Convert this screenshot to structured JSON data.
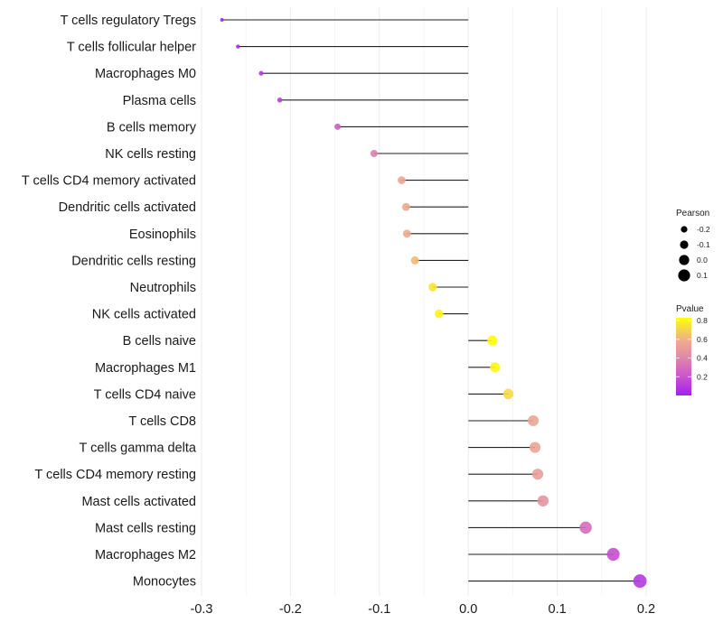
{
  "chart_data": {
    "type": "lollipop",
    "title": "",
    "xlabel": "",
    "ylabel": "",
    "xlim": [
      -0.3,
      0.2
    ],
    "x_ticks": [
      "-0.3",
      "-0.2",
      "-0.1",
      "0.0",
      "0.1",
      "0.2"
    ],
    "x_tick_values": [
      -0.3,
      -0.2,
      -0.1,
      0.0,
      0.1,
      0.2
    ],
    "grid": "vertical",
    "categories": [
      "T cells regulatory  Tregs",
      "T cells follicular helper",
      "Macrophages M0",
      "Plasma cells",
      "B cells memory",
      "NK cells resting",
      "T cells CD4 memory activated",
      "Dendritic cells activated",
      "Eosinophils",
      "Dendritic cells resting",
      "Neutrophils",
      "NK cells activated",
      "B cells naive",
      "Macrophages M1",
      "T cells CD4 naive",
      "T cells CD8",
      "T cells gamma delta",
      "T cells CD4 memory resting",
      "Mast cells activated",
      "Mast cells resting",
      "Macrophages M2",
      "Monocytes"
    ],
    "series": [
      {
        "name": "Pearson",
        "values": [
          -0.277,
          -0.259,
          -0.233,
          -0.212,
          -0.147,
          -0.106,
          -0.075,
          -0.07,
          -0.069,
          -0.06,
          -0.04,
          -0.033,
          0.027,
          0.03,
          0.045,
          0.073,
          0.075,
          0.078,
          0.084,
          0.132,
          0.163,
          0.193
        ]
      },
      {
        "name": "Pvalue",
        "values": [
          0.02,
          0.04,
          0.08,
          0.12,
          0.25,
          0.38,
          0.55,
          0.57,
          0.57,
          0.63,
          0.75,
          0.8,
          0.83,
          0.8,
          0.72,
          0.55,
          0.54,
          0.52,
          0.47,
          0.3,
          0.18,
          0.1
        ]
      }
    ],
    "legend": {
      "placement": "right",
      "size_legend": {
        "title": "Pearson",
        "labels": [
          "-0.2",
          "-0.1",
          "0.0",
          "0.1"
        ],
        "values": [
          -0.2,
          -0.1,
          0.0,
          0.1
        ]
      },
      "color_legend": {
        "title": "Pvalue",
        "labels": [
          "0.8",
          "0.6",
          "0.4",
          "0.2"
        ],
        "values": [
          0.8,
          0.6,
          0.4,
          0.2
        ],
        "range": [
          0.0,
          0.83
        ],
        "low_color": "#a020f0",
        "mid_color": "#eeb08c",
        "high_color": "#ffff00"
      }
    }
  }
}
